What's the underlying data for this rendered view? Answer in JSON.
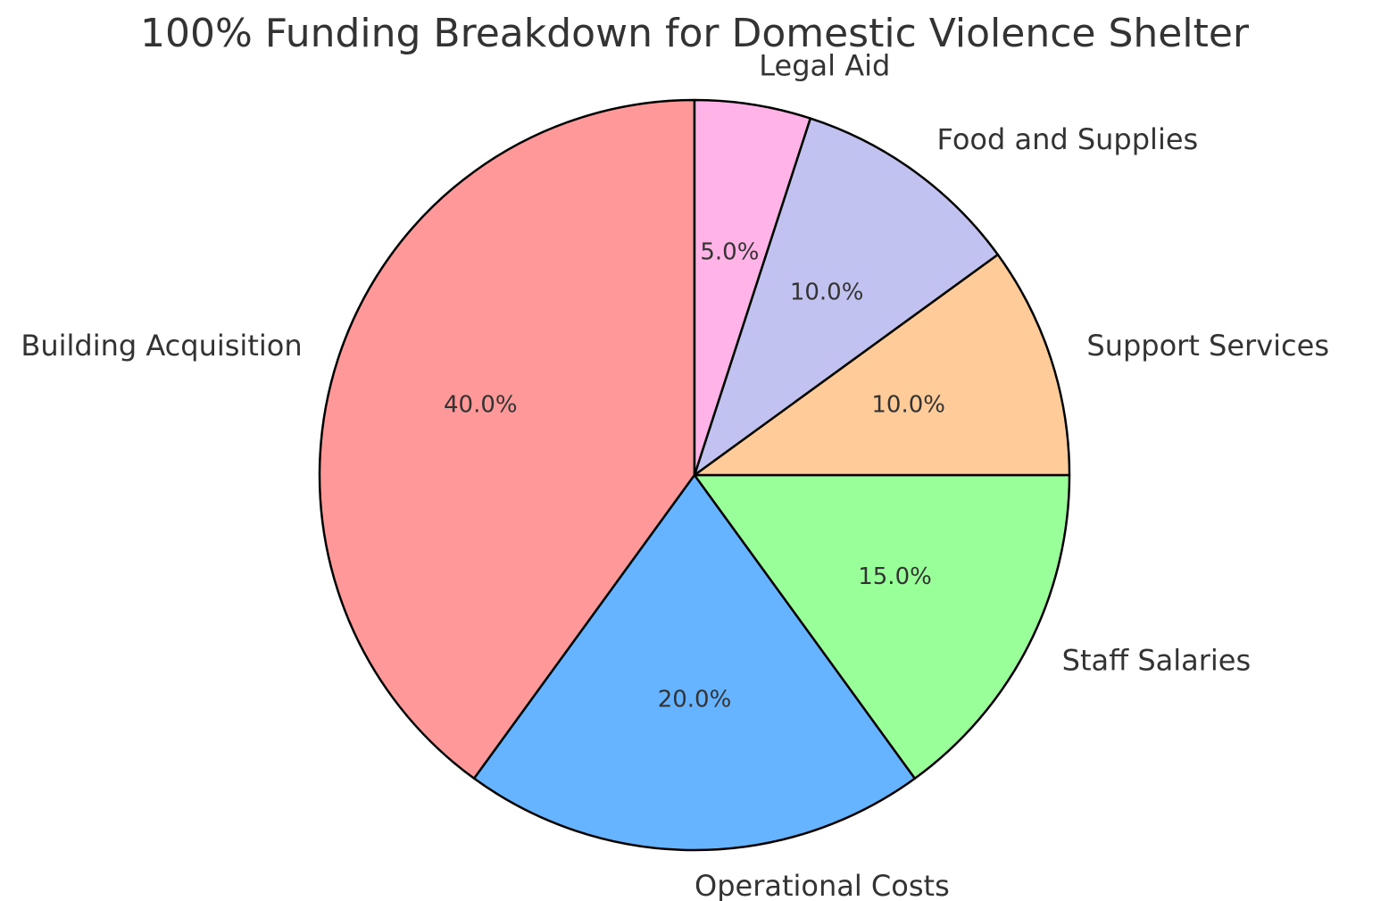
{
  "chart_data": {
    "type": "pie",
    "title": "100% Funding Breakdown for Domestic Violence Shelter",
    "categories": [
      "Building Acquisition",
      "Operational Costs",
      "Staff Salaries",
      "Support Services",
      "Food and Supplies",
      "Legal Aid"
    ],
    "values": [
      40,
      20,
      15,
      10,
      10,
      5
    ],
    "value_labels": [
      "40.0%",
      "20.0%",
      "15.0%",
      "10.0%",
      "10.0%",
      "5.0%"
    ],
    "colors": [
      "#ff9999",
      "#66b3ff",
      "#99ff99",
      "#ffcc99",
      "#c2c2f0",
      "#ffb3e6"
    ]
  }
}
